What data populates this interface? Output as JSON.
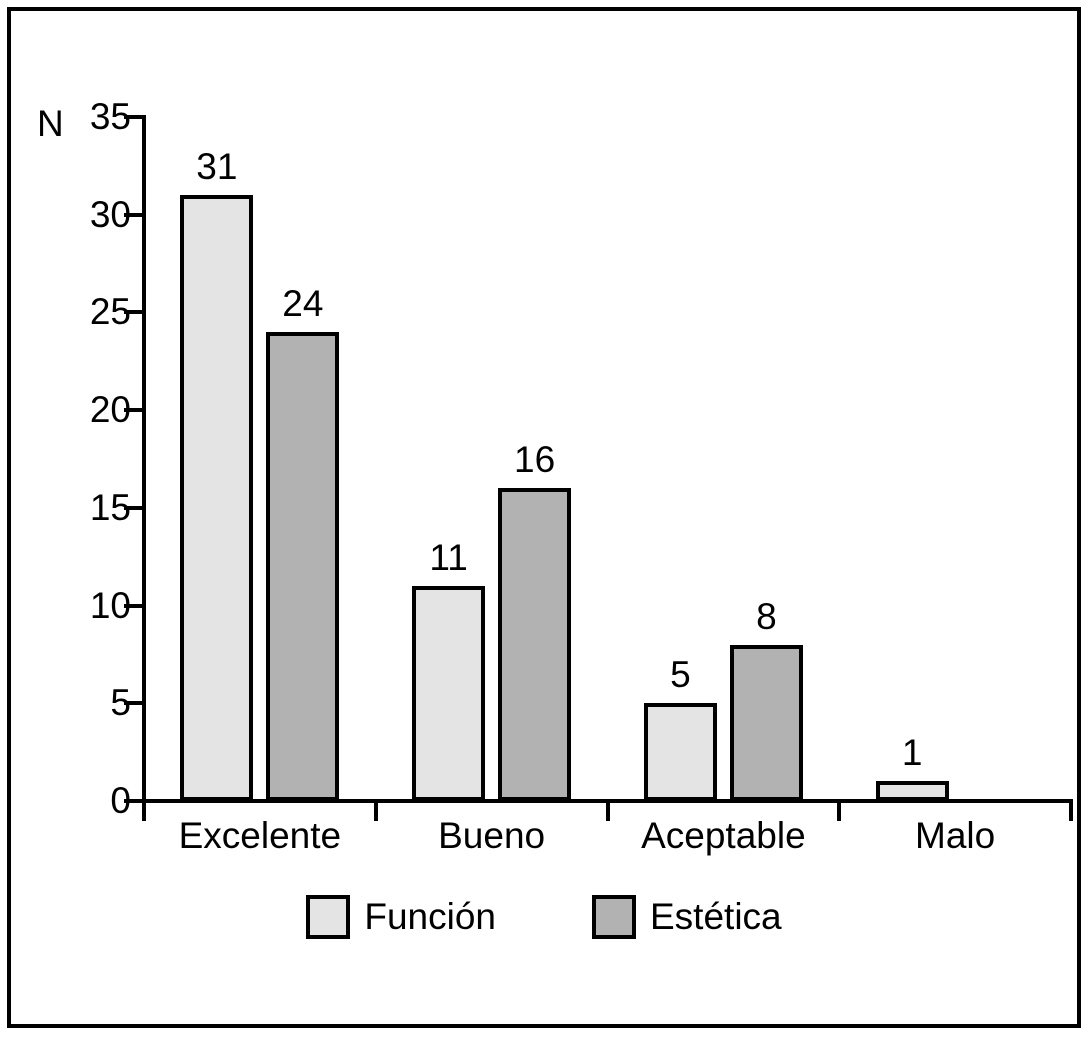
{
  "figure": {
    "background": "#ffffff",
    "frame_border_color": "#000000"
  },
  "chart_data": {
    "type": "bar",
    "title": "",
    "ylabel": "N",
    "xlabel": "",
    "categories": [
      "Excelente",
      "Bueno",
      "Aceptable",
      "Malo"
    ],
    "series": [
      {
        "name": "Función",
        "color": "#e4e4e4",
        "values": [
          31,
          11,
          5,
          1
        ]
      },
      {
        "name": "Estética",
        "color": "#b2b2b2",
        "values": [
          24,
          16,
          8,
          null
        ]
      }
    ],
    "ylim": [
      0,
      35
    ],
    "yticks": [
      0,
      5,
      10,
      15,
      20,
      25,
      30,
      35
    ],
    "grid": false,
    "legend_position": "bottom",
    "value_labels_visible": true,
    "bar_outline_color": "#000000",
    "axis_color": "#000000"
  }
}
